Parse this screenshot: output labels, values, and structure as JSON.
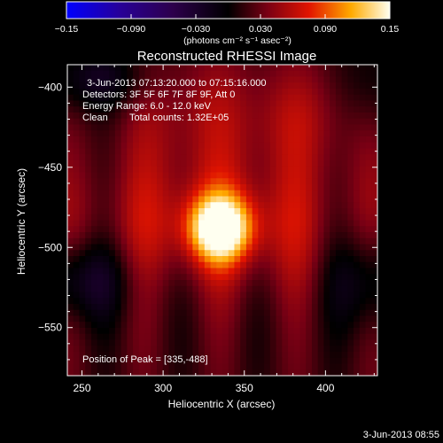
{
  "chart_data": {
    "type": "heatmap",
    "title": "Reconstructed RHESSI Image",
    "xlabel": "Heliocentric X (arcsec)",
    "ylabel": "Heliocentric Y (arcsec)",
    "xlim": [
      241,
      432
    ],
    "ylim": [
      -580,
      -386
    ],
    "x_ticks": [
      250,
      300,
      350,
      400
    ],
    "y_ticks": [
      -400,
      -450,
      -500,
      -550
    ],
    "colorbar": {
      "min": -0.15,
      "max": 0.15,
      "ticks": [
        -0.15,
        -0.09,
        -0.03,
        0.03,
        0.09,
        0.15
      ],
      "tick_labels": [
        "−0.15",
        "−0.090",
        "−0.030",
        "0.030",
        "0.090",
        "0.15"
      ],
      "unit_label": "(photons cm⁻² s⁻¹ asec⁻²)"
    },
    "peak": {
      "x": 335,
      "y": -488,
      "value": 0.15
    },
    "background_value": 0.02,
    "annotations": {
      "time_range": "3-Jun-2013 07:13:20.000 to 07:15:16.000",
      "detectors": "Detectors: 3F 5F 6F 7F 8F 9F, Att 0",
      "energy": "Energy Range: 6.0 - 12.0 keV",
      "clean_label": "Clean",
      "counts": "Total counts: 1.32E+05",
      "peak_text": "Position of Peak = [335,-488]"
    },
    "grid": false,
    "footer_timestamp": "3-Jun-2013 08:55"
  }
}
